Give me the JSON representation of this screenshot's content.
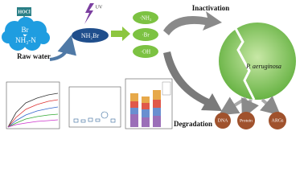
{
  "nodes": [
    {
      "label": "HOCl"
    },
    {
      "label": "Br"
    },
    {
      "label": "NH₃-N"
    },
    {
      "label": "Raw water"
    },
    {
      "label": "UV"
    },
    {
      "label": "NH₂Br"
    },
    {
      "label": "·NH₂"
    },
    {
      "label": "·Br"
    },
    {
      "label": "·OH"
    },
    {
      "label": "Inactivation"
    },
    {
      "label": "P. aeruginosa"
    },
    {
      "label": "Degradation"
    },
    {
      "label": "DNA"
    },
    {
      "label": "Protein"
    },
    {
      "label": "ARGs"
    }
  ]
}
